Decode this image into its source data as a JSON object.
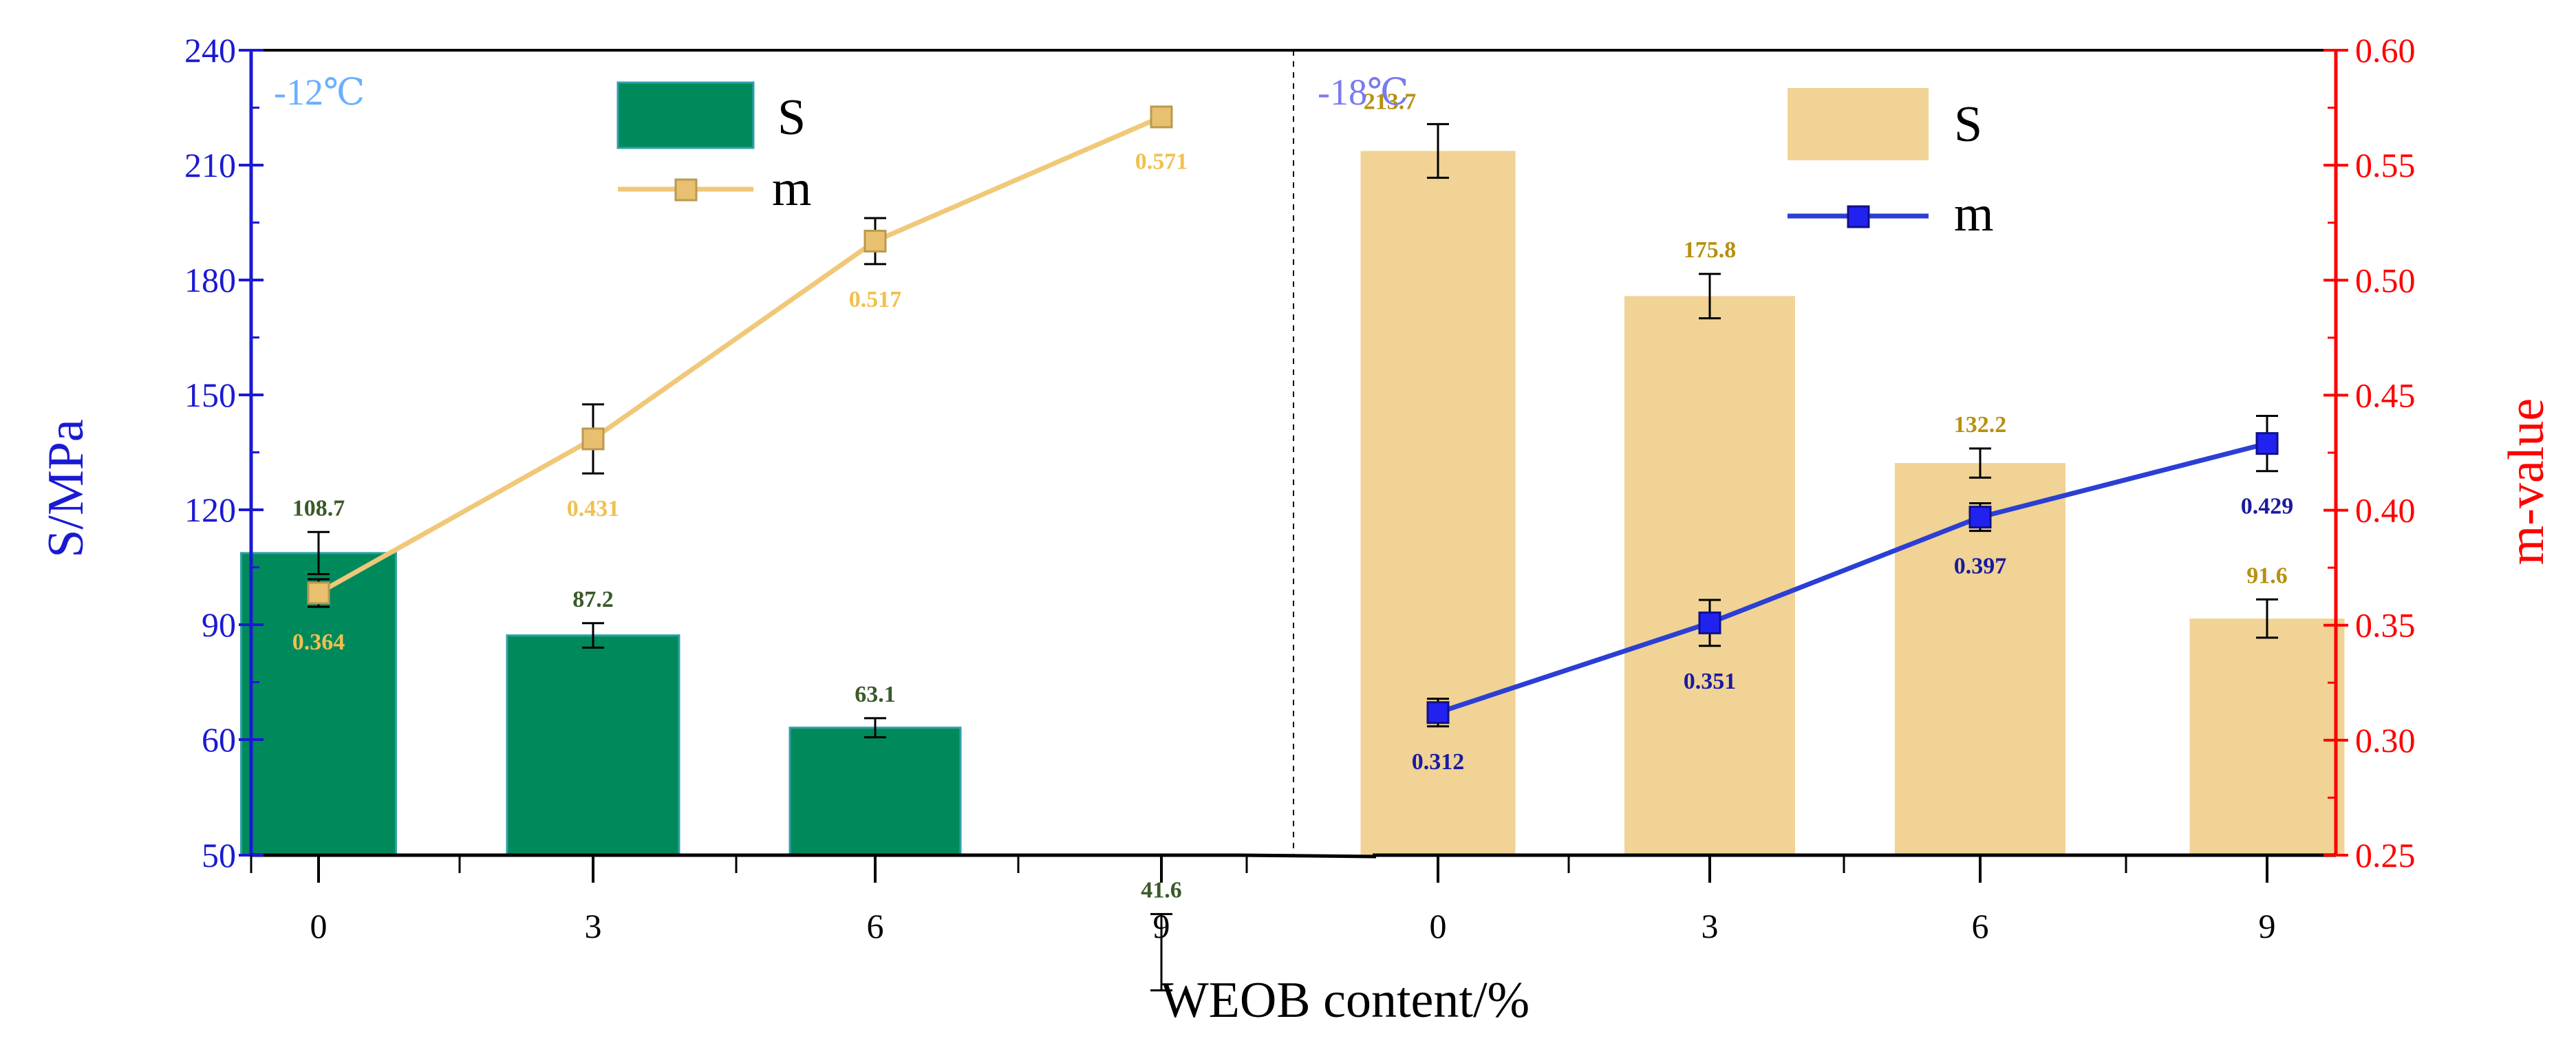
{
  "colors": {
    "left_axis": "#1a1ad2",
    "right_axis": "#ff0000",
    "bar_green": "#008a5c",
    "bar_green_edge": "#2fa0a8",
    "bar_tan": "#f0d395",
    "line_tan": "#f0c878",
    "line_blue": "#2b3fd4",
    "marker_blue": "#2222f0",
    "label_green": "#3a5a2a",
    "label_gold": "#b8900f",
    "label_tan_m": "#f0c050",
    "label_blue_m": "#1a1aa0",
    "panel_left": "#6ab0ff",
    "panel_right": "#7a7aee",
    "errorbar": "#000000"
  },
  "chart_data": {
    "type": "bar",
    "xlabel": "WEOB content/%",
    "ylabel_left": "S/MPa",
    "ylabel_right": "m-value",
    "ylim_left": [
      50,
      240
    ],
    "yticks_left": [
      "50",
      "60",
      "90",
      "120",
      "150",
      "180",
      "210",
      "240"
    ],
    "ylim_right": [
      0.25,
      0.6
    ],
    "yticks_right": [
      "0.25",
      "0.30",
      "0.35",
      "0.40",
      "0.45",
      "0.50",
      "0.55",
      "0.60"
    ],
    "grid": false,
    "panels": [
      {
        "label": "-12℃",
        "categories": [
          "0",
          "3",
          "6",
          "9"
        ],
        "series": [
          {
            "name": "S",
            "type": "bar",
            "axis": "left",
            "values": [
              108.7,
              87.2,
              63.1,
              41.6
            ],
            "value_labels": [
              "108.7",
              "87.2",
              "63.1",
              "41.6"
            ],
            "error": [
              5.5,
              3.2,
              2.5,
              3.3
            ]
          },
          {
            "name": "m",
            "type": "line",
            "axis": "right",
            "values": [
              0.364,
              0.431,
              0.517,
              0.571
            ],
            "value_labels": [
              "0.364",
              "0.431",
              "0.517",
              "0.571"
            ],
            "error": [
              0.006,
              0.015,
              0.01,
              0.004
            ]
          }
        ],
        "legend_position": "top-center"
      },
      {
        "label": "-18℃",
        "categories": [
          "0",
          "3",
          "6",
          "9"
        ],
        "series": [
          {
            "name": "S",
            "type": "bar",
            "axis": "left",
            "values": [
              213.7,
              175.8,
              132.2,
              91.6
            ],
            "value_labels": [
              "213.7",
              "175.8",
              "132.2",
              "91.6"
            ],
            "error": [
              7.0,
              5.8,
              3.8,
              5.0
            ]
          },
          {
            "name": "m",
            "type": "line",
            "axis": "right",
            "values": [
              0.312,
              0.351,
              0.397,
              0.429
            ],
            "value_labels": [
              "0.312",
              "0.351",
              "0.397",
              "0.429"
            ],
            "error": [
              0.006,
              0.01,
              0.006,
              0.012
            ]
          }
        ],
        "legend_position": "top-right"
      }
    ]
  }
}
